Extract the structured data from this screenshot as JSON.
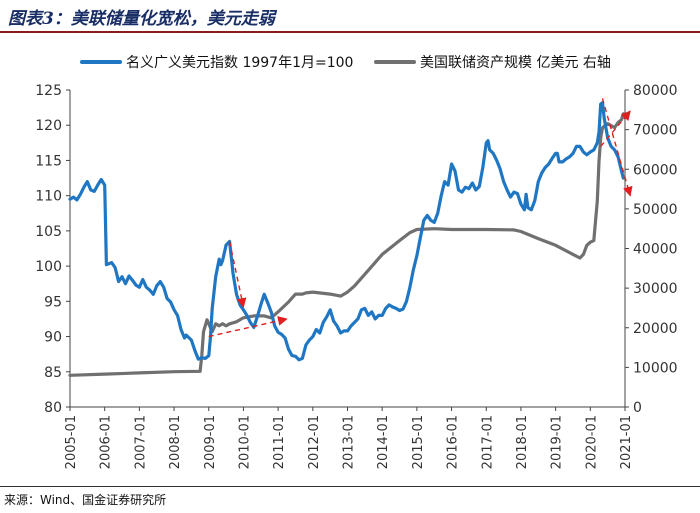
{
  "header": {
    "title": "图表3：美联储量化宽松，美元走弱"
  },
  "footer": {
    "source": "来源：Wind、国金证券研究所"
  },
  "colors": {
    "blue": "#1f77c4",
    "gray": "#707070",
    "arrow": "#e02020",
    "title": "#1a2e66"
  },
  "chart_data": {
    "type": "line",
    "title": "",
    "legend": [
      "名义广义美元指数 1997年1月=100",
      "美国联储资产规模 亿美元 右轴"
    ],
    "legend_position": "top",
    "x_ticks": [
      "2005-01",
      "2006-01",
      "2007-01",
      "2008-01",
      "2009-01",
      "2010-01",
      "2011-01",
      "2012-01",
      "2013-01",
      "2014-01",
      "2015-01",
      "2016-01",
      "2017-01",
      "2018-01",
      "2019-01",
      "2020-01",
      "2021-01"
    ],
    "y_left": {
      "min": 80,
      "max": 125,
      "step": 5,
      "ticks": [
        "125",
        "120",
        "115",
        "110",
        "105",
        "100",
        "95",
        "90",
        "85",
        "80"
      ]
    },
    "y_right": {
      "min": 0,
      "max": 80000,
      "step": 10000,
      "ticks": [
        "80000",
        "70000",
        "60000",
        "50000",
        "40000",
        "30000",
        "20000",
        "10000",
        "0"
      ]
    },
    "series": [
      {
        "name": "名义广义美元指数 1997年1月=100",
        "axis": "left",
        "points": [
          [
            2005.0,
            109.5
          ],
          [
            2005.1,
            109.8
          ],
          [
            2005.2,
            109.4
          ],
          [
            2005.3,
            110.2
          ],
          [
            2005.4,
            111.2
          ],
          [
            2005.5,
            112.0
          ],
          [
            2005.6,
            110.8
          ],
          [
            2005.7,
            110.6
          ],
          [
            2005.8,
            111.5
          ],
          [
            2005.9,
            112.3
          ],
          [
            2006.0,
            111.5
          ],
          [
            2006.05,
            100.2
          ],
          [
            2006.2,
            100.5
          ],
          [
            2006.3,
            99.8
          ],
          [
            2006.4,
            97.8
          ],
          [
            2006.5,
            98.5
          ],
          [
            2006.6,
            97.5
          ],
          [
            2006.7,
            98.6
          ],
          [
            2006.8,
            98.0
          ],
          [
            2006.9,
            97.3
          ],
          [
            2007.0,
            97.0
          ],
          [
            2007.1,
            98.1
          ],
          [
            2007.2,
            97.0
          ],
          [
            2007.3,
            96.6
          ],
          [
            2007.4,
            96.0
          ],
          [
            2007.5,
            97.2
          ],
          [
            2007.6,
            97.8
          ],
          [
            2007.7,
            97.0
          ],
          [
            2007.8,
            95.4
          ],
          [
            2007.9,
            94.9
          ],
          [
            2008.0,
            93.8
          ],
          [
            2008.1,
            93.0
          ],
          [
            2008.2,
            91.0
          ],
          [
            2008.3,
            89.8
          ],
          [
            2008.35,
            90.2
          ],
          [
            2008.5,
            89.5
          ],
          [
            2008.6,
            88.0
          ],
          [
            2008.7,
            86.8
          ],
          [
            2008.8,
            87.0
          ],
          [
            2008.9,
            86.9
          ],
          [
            2009.0,
            87.3
          ],
          [
            2009.05,
            90.0
          ],
          [
            2009.1,
            94.0
          ],
          [
            2009.2,
            98.5
          ],
          [
            2009.3,
            101.0
          ],
          [
            2009.35,
            100.2
          ],
          [
            2009.4,
            100.8
          ],
          [
            2009.5,
            103.0
          ],
          [
            2009.6,
            103.5
          ],
          [
            2009.7,
            99.0
          ],
          [
            2009.8,
            96.0
          ],
          [
            2009.9,
            94.5
          ],
          [
            2010.0,
            93.8
          ],
          [
            2010.1,
            93.0
          ],
          [
            2010.2,
            92.0
          ],
          [
            2010.3,
            91.3
          ],
          [
            2010.4,
            92.8
          ],
          [
            2010.5,
            94.5
          ],
          [
            2010.6,
            96.0
          ],
          [
            2010.7,
            94.8
          ],
          [
            2010.8,
            93.5
          ],
          [
            2010.9,
            91.5
          ],
          [
            2011.0,
            90.6
          ],
          [
            2011.1,
            90.3
          ],
          [
            2011.2,
            89.8
          ],
          [
            2011.3,
            88.2
          ],
          [
            2011.4,
            87.3
          ],
          [
            2011.5,
            87.2
          ],
          [
            2011.6,
            86.7
          ],
          [
            2011.7,
            86.9
          ],
          [
            2011.8,
            88.8
          ],
          [
            2011.9,
            89.5
          ],
          [
            2012.0,
            90.0
          ],
          [
            2012.1,
            91.0
          ],
          [
            2012.2,
            90.5
          ],
          [
            2012.3,
            92.0
          ],
          [
            2012.4,
            92.8
          ],
          [
            2012.5,
            93.8
          ],
          [
            2012.6,
            92.2
          ],
          [
            2012.7,
            91.5
          ],
          [
            2012.8,
            90.5
          ],
          [
            2012.9,
            90.8
          ],
          [
            2013.0,
            90.8
          ],
          [
            2013.1,
            91.5
          ],
          [
            2013.2,
            92.0
          ],
          [
            2013.3,
            92.5
          ],
          [
            2013.4,
            93.8
          ],
          [
            2013.5,
            94.0
          ],
          [
            2013.6,
            93.0
          ],
          [
            2013.7,
            93.5
          ],
          [
            2013.8,
            92.5
          ],
          [
            2013.9,
            93.0
          ],
          [
            2014.0,
            93.0
          ],
          [
            2014.1,
            94.0
          ],
          [
            2014.2,
            94.5
          ],
          [
            2014.3,
            94.2
          ],
          [
            2014.4,
            94.0
          ],
          [
            2014.5,
            93.7
          ],
          [
            2014.6,
            93.9
          ],
          [
            2014.7,
            95.0
          ],
          [
            2014.8,
            97.0
          ],
          [
            2014.9,
            99.5
          ],
          [
            2015.0,
            101.5
          ],
          [
            2015.1,
            104.0
          ],
          [
            2015.2,
            106.5
          ],
          [
            2015.3,
            107.2
          ],
          [
            2015.4,
            106.5
          ],
          [
            2015.5,
            106.2
          ],
          [
            2015.6,
            107.5
          ],
          [
            2015.7,
            110.0
          ],
          [
            2015.8,
            112.0
          ],
          [
            2015.9,
            111.5
          ],
          [
            2016.0,
            114.5
          ],
          [
            2016.1,
            113.5
          ],
          [
            2016.2,
            110.8
          ],
          [
            2016.3,
            110.5
          ],
          [
            2016.4,
            111.2
          ],
          [
            2016.5,
            111.0
          ],
          [
            2016.6,
            111.8
          ],
          [
            2016.7,
            110.8
          ],
          [
            2016.8,
            111.3
          ],
          [
            2016.9,
            114.0
          ],
          [
            2017.0,
            117.5
          ],
          [
            2017.05,
            117.8
          ],
          [
            2017.1,
            116.5
          ],
          [
            2017.2,
            116.0
          ],
          [
            2017.3,
            115.0
          ],
          [
            2017.4,
            113.8
          ],
          [
            2017.5,
            112.0
          ],
          [
            2017.6,
            110.8
          ],
          [
            2017.7,
            109.8
          ],
          [
            2017.8,
            110.5
          ],
          [
            2017.9,
            110.3
          ],
          [
            2018.0,
            108.8
          ],
          [
            2018.1,
            108.0
          ],
          [
            2018.15,
            110.2
          ],
          [
            2018.2,
            108.3
          ],
          [
            2018.3,
            108.0
          ],
          [
            2018.4,
            109.3
          ],
          [
            2018.5,
            112.0
          ],
          [
            2018.6,
            113.2
          ],
          [
            2018.7,
            114.0
          ],
          [
            2018.8,
            114.5
          ],
          [
            2018.9,
            115.3
          ],
          [
            2019.0,
            116.0
          ],
          [
            2019.05,
            116.0
          ],
          [
            2019.1,
            114.8
          ],
          [
            2019.2,
            114.8
          ],
          [
            2019.3,
            115.2
          ],
          [
            2019.4,
            115.5
          ],
          [
            2019.5,
            116.0
          ],
          [
            2019.6,
            117.0
          ],
          [
            2019.7,
            117.0
          ],
          [
            2019.8,
            116.2
          ],
          [
            2019.9,
            115.8
          ],
          [
            2020.0,
            116.2
          ],
          [
            2020.1,
            116.5
          ],
          [
            2020.2,
            117.5
          ],
          [
            2020.25,
            119.0
          ],
          [
            2020.3,
            123.0
          ],
          [
            2020.35,
            123.2
          ],
          [
            2020.4,
            121.0
          ],
          [
            2020.5,
            118.2
          ],
          [
            2020.6,
            117.0
          ],
          [
            2020.7,
            116.5
          ],
          [
            2020.8,
            115.5
          ],
          [
            2020.9,
            113.5
          ],
          [
            2020.95,
            112.5
          ]
        ]
      },
      {
        "name": "美国联储资产规模 亿美元 右轴",
        "axis": "right",
        "points": [
          [
            2005.0,
            8000
          ],
          [
            2006.0,
            8300
          ],
          [
            2007.0,
            8600
          ],
          [
            2008.0,
            8900
          ],
          [
            2008.75,
            9000
          ],
          [
            2008.8,
            13000
          ],
          [
            2008.85,
            19000
          ],
          [
            2008.95,
            22000
          ],
          [
            2009.0,
            21000
          ],
          [
            2009.1,
            19000
          ],
          [
            2009.2,
            21000
          ],
          [
            2009.3,
            20500
          ],
          [
            2009.4,
            21000
          ],
          [
            2009.5,
            20500
          ],
          [
            2009.6,
            21000
          ],
          [
            2009.8,
            21500
          ],
          [
            2010.0,
            22500
          ],
          [
            2010.3,
            23000
          ],
          [
            2010.6,
            23000
          ],
          [
            2010.8,
            22500
          ],
          [
            2011.0,
            24000
          ],
          [
            2011.3,
            26500
          ],
          [
            2011.5,
            28500
          ],
          [
            2011.7,
            28500
          ],
          [
            2011.8,
            28800
          ],
          [
            2012.0,
            29000
          ],
          [
            2012.5,
            28500
          ],
          [
            2012.8,
            28000
          ],
          [
            2013.0,
            29000
          ],
          [
            2013.2,
            30500
          ],
          [
            2013.5,
            33500
          ],
          [
            2013.8,
            36500
          ],
          [
            2014.0,
            38500
          ],
          [
            2014.5,
            42000
          ],
          [
            2014.8,
            44000
          ],
          [
            2015.0,
            44800
          ],
          [
            2015.5,
            45000
          ],
          [
            2016.0,
            44800
          ],
          [
            2017.0,
            44800
          ],
          [
            2017.8,
            44700
          ],
          [
            2018.0,
            44300
          ],
          [
            2018.5,
            42500
          ],
          [
            2019.0,
            40800
          ],
          [
            2019.5,
            38500
          ],
          [
            2019.7,
            37600
          ],
          [
            2019.8,
            38500
          ],
          [
            2019.9,
            40800
          ],
          [
            2020.0,
            41600
          ],
          [
            2020.1,
            42000
          ],
          [
            2020.2,
            52000
          ],
          [
            2020.25,
            62000
          ],
          [
            2020.3,
            68000
          ],
          [
            2020.35,
            70500
          ],
          [
            2020.5,
            71500
          ],
          [
            2020.7,
            70500
          ],
          [
            2020.8,
            71800
          ],
          [
            2020.9,
            72500
          ],
          [
            2020.95,
            74000
          ],
          [
            2021.0,
            74000
          ]
        ]
      }
    ],
    "annotations": [
      {
        "type": "arrow",
        "style": "dashed",
        "from": [
          2009.6,
          103.5
        ],
        "to": [
          2010.0,
          94.2
        ]
      },
      {
        "type": "arrow",
        "style": "dashed",
        "from": [
          2009.0,
          90.0
        ],
        "to": [
          2011.25,
          92.5
        ]
      },
      {
        "type": "arrow",
        "style": "dashed",
        "from": [
          2020.35,
          123.8
        ],
        "to": [
          2021.15,
          110.0
        ]
      },
      {
        "type": "arrow",
        "style": "dashed",
        "from": [
          2020.3,
          117.0
        ],
        "to": [
          2021.15,
          122.0
        ]
      }
    ]
  }
}
